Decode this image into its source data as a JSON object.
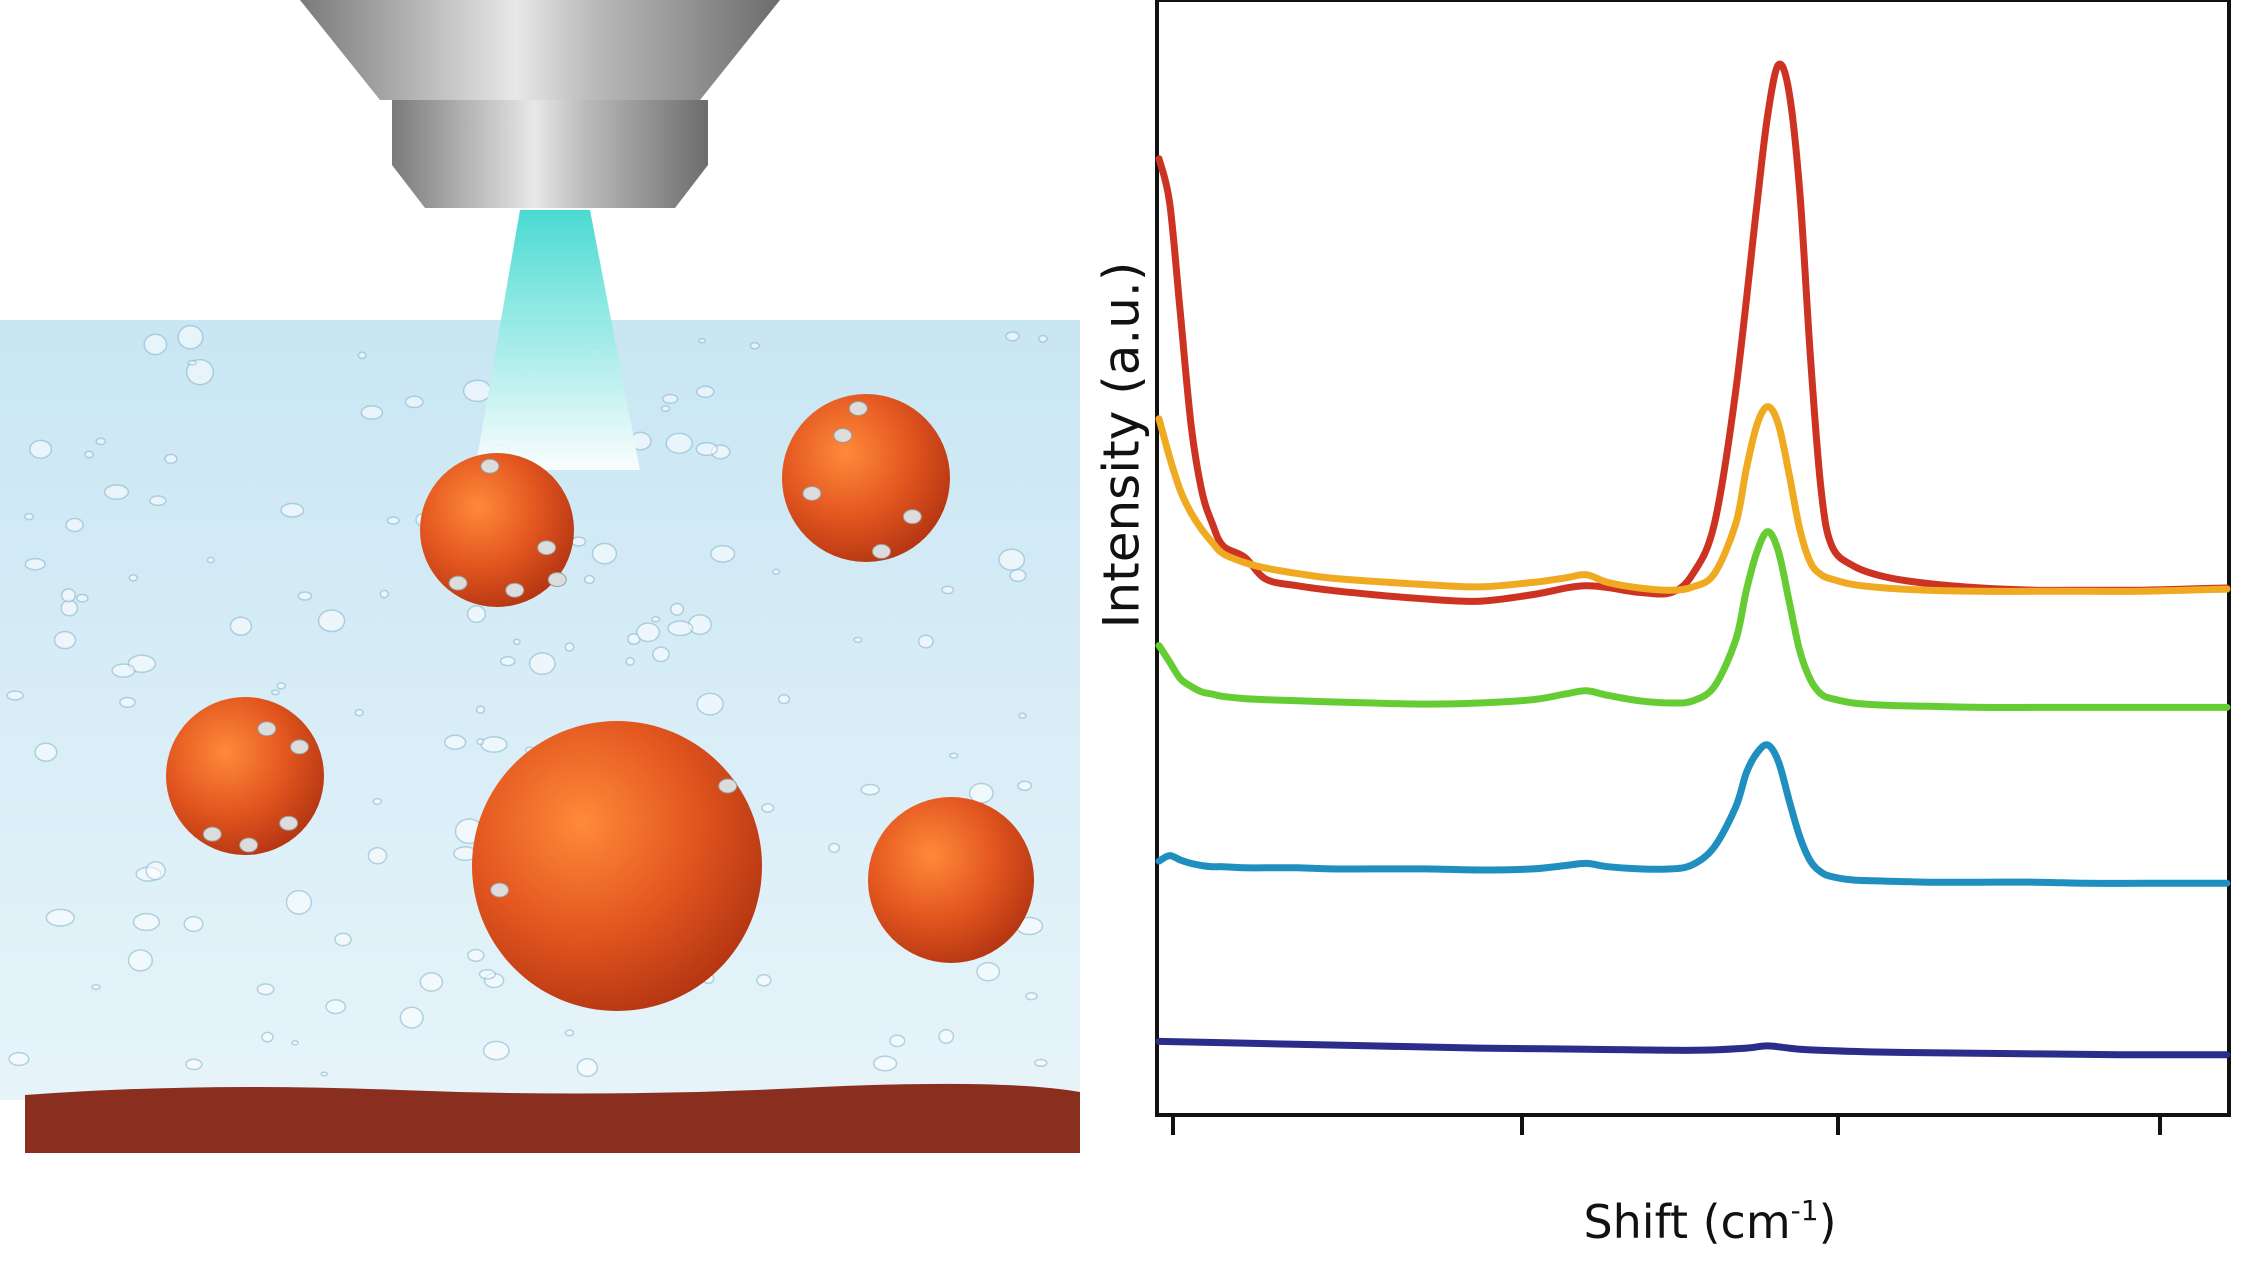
{
  "illustration": {
    "colors": {
      "water_top": "#c9e6f3",
      "water_bottom": "#e7f4fa",
      "substrate": "#8a2f1f",
      "particle": "#e2561f",
      "laser_beam": "#3fd8cf",
      "nozzle": "#9a9a9a"
    },
    "icons": [
      "laser-nozzle-icon",
      "laser-beam-icon",
      "nanoparticle-icon",
      "bubble-icon",
      "substrate-icon"
    ]
  },
  "chart_data": {
    "type": "line",
    "title": "",
    "xlabel": "Shift (cm",
    "xlabel_sup": "-1",
    "xlabel_close": ")",
    "ylabel": "Intensity (a.u.)",
    "x_ticks_labeled": false,
    "y_ticks_labeled": false,
    "grid": false,
    "legend": "none",
    "xlim": [
      0,
      100
    ],
    "ylim": [
      0,
      100
    ],
    "series": [
      {
        "color": "#cc3322",
        "x": [
          0,
          1,
          2,
          3,
          4,
          5,
          6,
          8,
          10,
          13,
          16,
          20,
          25,
          30,
          35,
          40,
          45,
          48,
          50,
          52,
          54,
          56,
          57,
          58,
          59,
          60,
          61,
          62,
          63,
          65,
          68,
          72,
          77,
          82,
          87,
          92,
          96,
          100
        ],
        "y": [
          86,
          82,
          72,
          62,
          56,
          53,
          51,
          50,
          48,
          47.4,
          47,
          46.6,
          46.2,
          46,
          46.6,
          47.4,
          46.8,
          46.8,
          48.5,
          53,
          65,
          82,
          90,
          94.5,
          92,
          83,
          68,
          56,
          51,
          49.2,
          48.2,
          47.6,
          47.2,
          47,
          47,
          47,
          47.1,
          47.2
        ]
      },
      {
        "color": "#f0aa22",
        "x": [
          0,
          1,
          2,
          3,
          4,
          5,
          6,
          8,
          10,
          13,
          16,
          20,
          25,
          30,
          35,
          38,
          40,
          42,
          45,
          48,
          50,
          52,
          54,
          55,
          56,
          57,
          58,
          59,
          60,
          61,
          62,
          63,
          65,
          68,
          72,
          77,
          82,
          87,
          92,
          96,
          100
        ],
        "y": [
          62.5,
          59,
          56,
          54,
          52.5,
          51.3,
          50.3,
          49.5,
          49,
          48.5,
          48.1,
          47.8,
          47.5,
          47.3,
          47.7,
          48.1,
          48.4,
          47.7,
          47.2,
          47,
          47.3,
          48.5,
          53,
          58,
          62,
          63.6,
          62,
          57.5,
          52.5,
          49.5,
          48.4,
          48,
          47.5,
          47.2,
          47,
          46.9,
          46.9,
          46.9,
          46.9,
          47,
          47.1
        ]
      },
      {
        "color": "#66cc33",
        "x": [
          0,
          1,
          2,
          3,
          4,
          5,
          6,
          8,
          10,
          13,
          16,
          20,
          25,
          30,
          35,
          38,
          40,
          42,
          45,
          48,
          50,
          52,
          54,
          55,
          56,
          57,
          58,
          59,
          60,
          61,
          62,
          63,
          65,
          68,
          72,
          77,
          82,
          87,
          92,
          96,
          100
        ],
        "y": [
          42,
          40.5,
          39,
          38.3,
          37.8,
          37.6,
          37.4,
          37.2,
          37.1,
          37,
          36.9,
          36.8,
          36.7,
          36.8,
          37.1,
          37.6,
          37.9,
          37.5,
          37,
          36.8,
          37,
          38.3,
          42.5,
          47,
          50.5,
          52.3,
          50.5,
          46,
          41.5,
          38.9,
          37.6,
          37.2,
          36.8,
          36.6,
          36.5,
          36.4,
          36.4,
          36.4,
          36.4,
          36.4,
          36.4
        ]
      },
      {
        "color": "#1f8fc0",
        "x": [
          0,
          1,
          2,
          3,
          4,
          5,
          6,
          8,
          10,
          13,
          16,
          20,
          25,
          30,
          35,
          38,
          40,
          42,
          45,
          48,
          50,
          52,
          54,
          55,
          56,
          57,
          58,
          59,
          60,
          61,
          62,
          63,
          65,
          68,
          72,
          77,
          82,
          87,
          92,
          96,
          100
        ],
        "y": [
          22.5,
          23,
          22.6,
          22.3,
          22.1,
          22,
          22,
          21.9,
          21.9,
          21.9,
          21.8,
          21.8,
          21.8,
          21.7,
          21.8,
          22.1,
          22.3,
          22,
          21.8,
          21.8,
          22.2,
          23.8,
          27.4,
          30.5,
          32.3,
          33,
          31.5,
          28,
          24.7,
          22.5,
          21.5,
          21.1,
          20.8,
          20.7,
          20.6,
          20.6,
          20.6,
          20.5,
          20.5,
          20.5,
          20.5
        ]
      },
      {
        "color": "#2a2e8a",
        "x": [
          0,
          10,
          20,
          30,
          40,
          50,
          55,
          57,
          60,
          65,
          70,
          80,
          90,
          100
        ],
        "y": [
          6.2,
          6.0,
          5.8,
          5.6,
          5.5,
          5.4,
          5.6,
          5.8,
          5.5,
          5.3,
          5.2,
          5.1,
          5.0,
          5.0
        ]
      }
    ]
  }
}
